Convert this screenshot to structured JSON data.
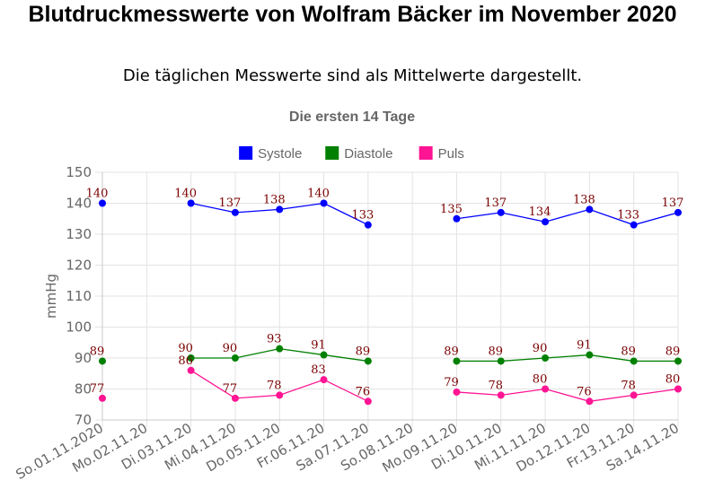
{
  "header": {
    "title": "Blutdruckmesswerte von Wolfram Bäcker im November 2020",
    "subtitle": "Die täglichen Messwerte sind als Mittelwerte dargestellt."
  },
  "chart_data": {
    "type": "line",
    "title": "Die ersten 14 Tage",
    "xlabel": "",
    "ylabel": "mmHg",
    "ylim": [
      70,
      150
    ],
    "yticks": [
      70,
      80,
      90,
      100,
      110,
      120,
      130,
      140,
      150
    ],
    "grid": true,
    "legend_position": "top-center",
    "categories": [
      "So.01.11.2020",
      "Mo.02.11.20",
      "Di.03.11.20",
      "Mi.04.11.20",
      "Do.05.11.20",
      "Fr.06.11.20",
      "Sa.07.11.20",
      "So.08.11.20",
      "Mo.09.11.20",
      "Di.10.11.20",
      "Mi.11.11.20",
      "Do.12.11.20",
      "Fr.13.11.20",
      "Sa.14.11.20"
    ],
    "series": [
      {
        "name": "Systole",
        "color": "#0000ff",
        "values": [
          140,
          null,
          140,
          137,
          138,
          140,
          133,
          null,
          135,
          137,
          134,
          138,
          133,
          137
        ]
      },
      {
        "name": "Diastole",
        "color": "#008000",
        "values": [
          89,
          null,
          90,
          90,
          93,
          91,
          89,
          null,
          89,
          89,
          90,
          91,
          89,
          89
        ]
      },
      {
        "name": "Puls",
        "color": "#ff1493",
        "values": [
          77,
          null,
          86,
          77,
          78,
          83,
          76,
          null,
          79,
          78,
          80,
          76,
          78,
          80
        ]
      }
    ]
  }
}
